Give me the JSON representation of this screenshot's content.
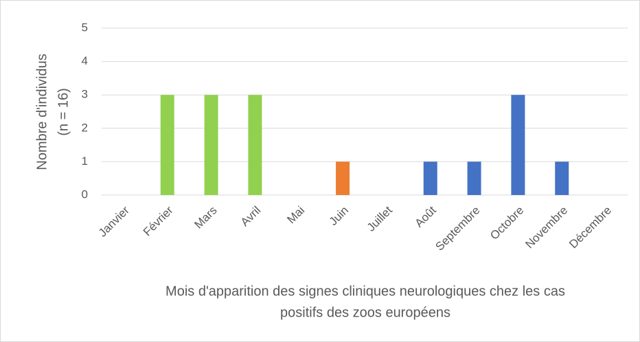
{
  "chart_data": {
    "type": "bar",
    "ylabel": [
      "Nombre d'individus",
      "(n = 16)"
    ],
    "xlabel": [
      "Mois d'apparition des signes cliniques neurologiques chez les cas",
      "positifs des zoos européens"
    ],
    "categories": [
      "Janvier",
      "Février",
      "Mars",
      "Avril",
      "Mai",
      "Juin",
      "Juillet",
      "Août",
      "Septembre",
      "Octobre",
      "Novembre",
      "Décembre"
    ],
    "values": [
      0,
      3,
      3,
      3,
      0,
      1,
      0,
      1,
      1,
      3,
      1,
      0
    ],
    "colors": [
      "#4472c4",
      "#92d050",
      "#92d050",
      "#92d050",
      "#92d050",
      "#ed7d31",
      "#ed7d31",
      "#4472c4",
      "#4472c4",
      "#4472c4",
      "#4472c4",
      "#4472c4"
    ],
    "ylim": [
      0,
      5
    ],
    "yticks": [
      0,
      1,
      2,
      3,
      4,
      5
    ],
    "grid": true
  }
}
